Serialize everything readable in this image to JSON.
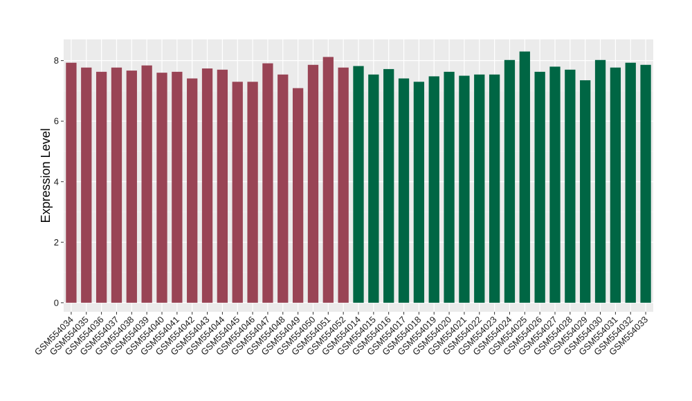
{
  "chart_data": {
    "type": "bar",
    "ylabel": "Expression Level",
    "xlabel": "",
    "ylim": [
      -0.3,
      8.7
    ],
    "yticks": [
      0,
      2,
      4,
      6,
      8
    ],
    "grid": true,
    "background": "#ebebeb",
    "categories": [
      "GSM554034",
      "GSM554035",
      "GSM554036",
      "GSM554037",
      "GSM554038",
      "GSM554039",
      "GSM554040",
      "GSM554041",
      "GSM554042",
      "GSM554043",
      "GSM554044",
      "GSM554045",
      "GSM554046",
      "GSM554047",
      "GSM554048",
      "GSM554049",
      "GSM554050",
      "GSM554051",
      "GSM554052",
      "GSM554014",
      "GSM554015",
      "GSM554016",
      "GSM554017",
      "GSM554018",
      "GSM554019",
      "GSM554020",
      "GSM554021",
      "GSM554022",
      "GSM554023",
      "GSM554024",
      "GSM554025",
      "GSM554026",
      "GSM554027",
      "GSM554028",
      "GSM554029",
      "GSM554030",
      "GSM554031",
      "GSM554032",
      "GSM554033"
    ],
    "values": [
      7.93,
      7.77,
      7.63,
      7.77,
      7.67,
      7.84,
      7.6,
      7.63,
      7.41,
      7.74,
      7.7,
      7.3,
      7.3,
      7.91,
      7.54,
      7.09,
      7.86,
      8.12,
      7.77,
      7.82,
      7.54,
      7.72,
      7.41,
      7.3,
      7.48,
      7.63,
      7.5,
      7.54,
      7.54,
      8.02,
      8.3,
      7.63,
      7.8,
      7.7,
      7.35,
      8.02,
      7.77,
      7.93,
      7.86
    ],
    "colors": [
      "#994455",
      "#994455",
      "#994455",
      "#994455",
      "#994455",
      "#994455",
      "#994455",
      "#994455",
      "#994455",
      "#994455",
      "#994455",
      "#994455",
      "#994455",
      "#994455",
      "#994455",
      "#994455",
      "#994455",
      "#994455",
      "#994455",
      "#006644",
      "#006644",
      "#006644",
      "#006644",
      "#006644",
      "#006644",
      "#006644",
      "#006644",
      "#006644",
      "#006644",
      "#006644",
      "#006644",
      "#006644",
      "#006644",
      "#006644",
      "#006644",
      "#006644",
      "#006644",
      "#006644",
      "#006644"
    ]
  }
}
